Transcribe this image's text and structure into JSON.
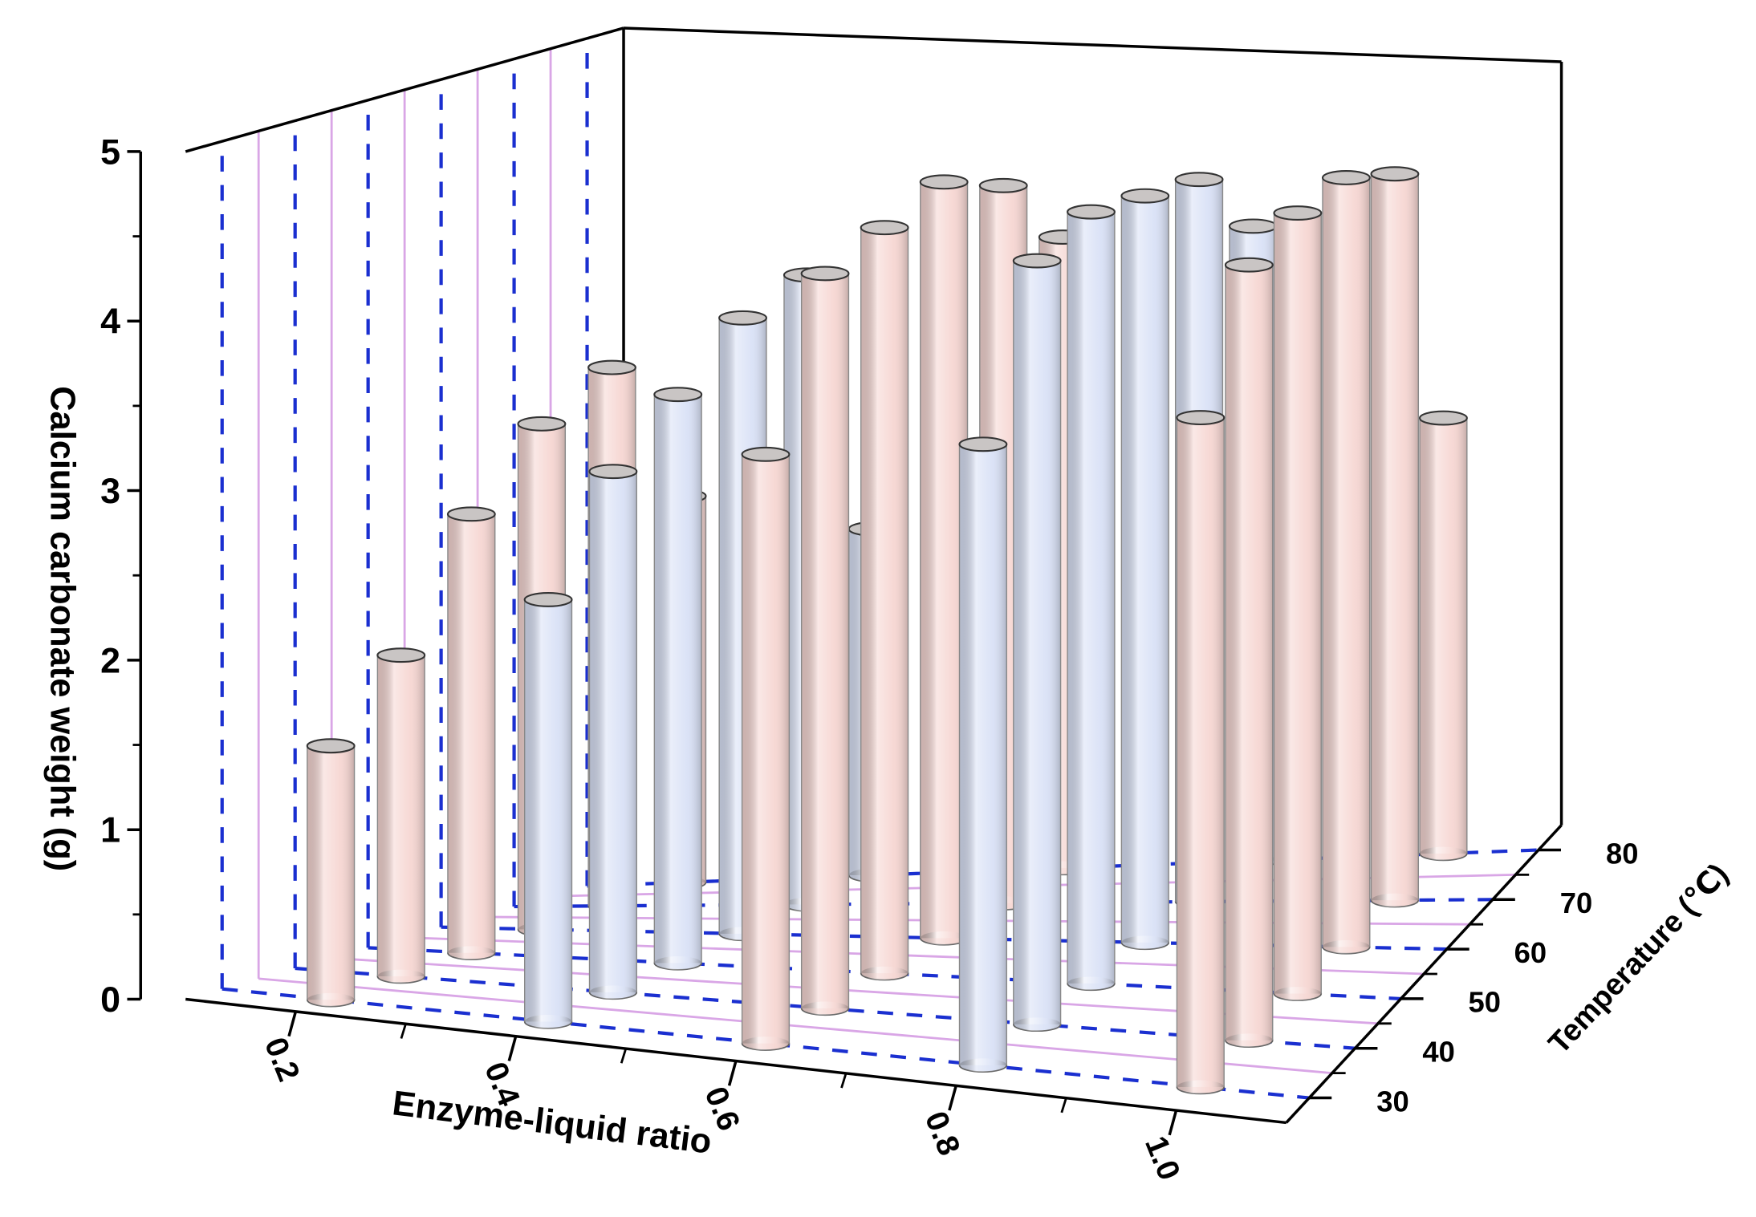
{
  "chart_data": {
    "type": "bar3d",
    "x_label": "Enzyme-liquid ratio",
    "y_label": "Temperature (℃)",
    "z_label": "Calcium carbonate weight (g)",
    "x": [
      0.2,
      0.4,
      0.6,
      0.8,
      1.0
    ],
    "y": [
      30,
      40,
      50,
      60,
      70,
      80
    ],
    "values": [
      [
        1.5,
        1.9,
        2.6,
        3.0,
        3.2,
        2.3
      ],
      [
        2.5,
        3.1,
        3.4,
        3.7,
        3.8,
        2.1
      ],
      [
        3.5,
        4.4,
        4.5,
        4.6,
        4.4,
        3.9
      ],
      [
        3.7,
        4.6,
        4.7,
        4.6,
        4.5,
        4.0
      ],
      [
        4.0,
        4.7,
        4.8,
        4.8,
        4.6,
        2.8
      ]
    ],
    "colors": [
      "#f6d6d2",
      "#d9e1f6",
      "#f6d6d2",
      "#d9e1f6",
      "#f6d6d2"
    ],
    "xlim": [
      0.1,
      1.1
    ],
    "xticks": [
      0.2,
      0.4,
      0.6,
      0.8,
      {
        "value": 1.0,
        "label": "1.0"
      }
    ],
    "xminorticks": [
      0.3,
      0.5,
      0.7,
      0.9
    ],
    "ylim": [
      25,
      85
    ],
    "yticks": [
      30,
      40,
      50,
      60,
      70,
      80
    ],
    "yminorticks": [
      35,
      45,
      55,
      65,
      75
    ],
    "zlim": [
      0,
      5
    ],
    "zticks": [
      0,
      1,
      2,
      3,
      4,
      5
    ],
    "zminorticks": [
      0.5,
      1.5,
      2.5,
      3.5,
      4.5
    ],
    "grid": true
  }
}
